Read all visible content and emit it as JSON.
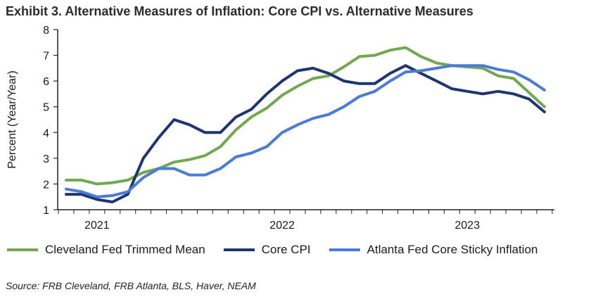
{
  "chart_data": {
    "type": "line",
    "title": "Exhibit 3. Alternative Measures of Inflation: Core CPI vs. Alternative Measures",
    "ylabel": "Percent (Year/Year)",
    "xlabel": "",
    "ylim": [
      1,
      8
    ],
    "yticks": [
      "1",
      "2",
      "3",
      "4",
      "5",
      "6",
      "7",
      "8"
    ],
    "xticks": [
      "2021",
      "2022",
      "2023"
    ],
    "series": [
      {
        "name": "Cleveland Fed Trimmed Mean",
        "color": "#72a84e",
        "values": [
          2.15,
          2.15,
          2.0,
          2.05,
          2.15,
          2.45,
          2.6,
          2.85,
          2.95,
          3.1,
          3.45,
          4.1,
          4.6,
          4.95,
          5.45,
          5.8,
          6.1,
          6.2,
          6.55,
          6.95,
          7.0,
          7.2,
          7.3,
          6.95,
          6.7,
          6.6,
          6.55,
          6.5,
          6.2,
          6.1,
          5.55,
          5.0
        ]
      },
      {
        "name": "Core CPI",
        "color": "#1d3570",
        "values": [
          1.6,
          1.6,
          1.4,
          1.3,
          1.6,
          3.0,
          3.8,
          4.5,
          4.3,
          4.0,
          4.0,
          4.6,
          4.9,
          5.5,
          6.0,
          6.4,
          6.5,
          6.3,
          6.0,
          5.9,
          5.9,
          6.3,
          6.6,
          6.3,
          6.0,
          5.7,
          5.6,
          5.5,
          5.6,
          5.5,
          5.3,
          4.8
        ]
      },
      {
        "name": "Atlanta Fed Core Sticky Inflation",
        "color": "#4a7bd6",
        "values": [
          1.8,
          1.7,
          1.5,
          1.55,
          1.7,
          2.25,
          2.6,
          2.6,
          2.35,
          2.35,
          2.6,
          3.05,
          3.2,
          3.45,
          4.0,
          4.3,
          4.55,
          4.7,
          5.0,
          5.4,
          5.6,
          6.0,
          6.35,
          6.4,
          6.5,
          6.6,
          6.6,
          6.6,
          6.45,
          6.35,
          6.05,
          5.65
        ]
      }
    ]
  },
  "legend": {
    "items": [
      {
        "label": "Cleveland Fed Trimmed Mean",
        "color": "#72a84e"
      },
      {
        "label": "Core CPI",
        "color": "#1d3570"
      },
      {
        "label": "Atlanta Fed Core Sticky Inflation",
        "color": "#4a7bd6"
      }
    ]
  },
  "source": "Source: FRB Cleveland, FRB Atlanta, BLS, Haver, NEAM"
}
